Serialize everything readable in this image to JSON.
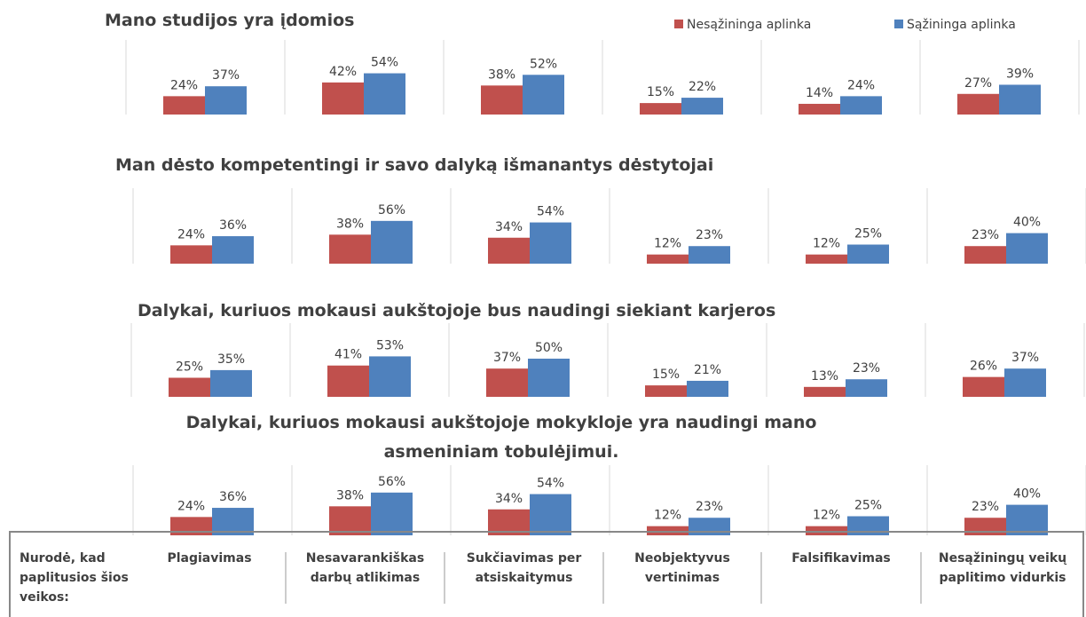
{
  "chart_data": [
    {
      "type": "bar",
      "title": "Mano studijos yra įdomios",
      "legend": "top-right",
      "series": [
        {
          "name": "Nesąžininga aplinka",
          "color": "#c0504d",
          "values": [
            24,
            42,
            38,
            15,
            14,
            27
          ],
          "value_labels": [
            "24%",
            "42%",
            "38%",
            "15%",
            "14%",
            "27%"
          ]
        },
        {
          "name": "Sąžininga aplinka",
          "color": "#4f81bd",
          "values": [
            37,
            54,
            52,
            22,
            24,
            39
          ],
          "value_labels": [
            "37%",
            "54%",
            "52%",
            "22%",
            "24%",
            "39%"
          ]
        }
      ]
    },
    {
      "type": "bar",
      "title": "Man dėsto kompetentingi ir savo dalyką išmanantys dėstytojai",
      "series": [
        {
          "name": "Nesąžininga aplinka",
          "color": "#c0504d",
          "values": [
            24,
            38,
            34,
            12,
            12,
            23
          ],
          "value_labels": [
            "24%",
            "38%",
            "34%",
            "12%",
            "12%",
            "23%"
          ]
        },
        {
          "name": "Sąžininga aplinka",
          "color": "#4f81bd",
          "values": [
            36,
            56,
            54,
            23,
            25,
            40
          ],
          "value_labels": [
            "36%",
            "56%",
            "54%",
            "23%",
            "25%",
            "40%"
          ]
        }
      ]
    },
    {
      "type": "bar",
      "title": "Dalykai, kuriuos mokausi aukštojoje bus naudingi siekiant karjeros",
      "series": [
        {
          "name": "Nesąžininga aplinka",
          "color": "#c0504d",
          "values": [
            25,
            41,
            37,
            15,
            13,
            26
          ],
          "value_labels": [
            "25%",
            "41%",
            "37%",
            "15%",
            "13%",
            "26%"
          ]
        },
        {
          "name": "Sąžininga aplinka",
          "color": "#4f81bd",
          "values": [
            35,
            53,
            50,
            21,
            23,
            37
          ],
          "value_labels": [
            "35%",
            "53%",
            "50%",
            "21%",
            "23%",
            "37%"
          ]
        }
      ]
    },
    {
      "type": "bar",
      "title": "Dalykai, kuriuos mokausi aukštojoje mokykloje yra naudingi mano asmeniniam tobulėjimui.",
      "series": [
        {
          "name": "Nesąžininga aplinka",
          "color": "#c0504d",
          "values": [
            24,
            38,
            34,
            12,
            12,
            23
          ],
          "value_labels": [
            "24%",
            "38%",
            "34%",
            "12%",
            "12%",
            "23%"
          ]
        },
        {
          "name": "Sąžininga aplinka",
          "color": "#4f81bd",
          "values": [
            36,
            56,
            54,
            23,
            25,
            40
          ],
          "value_labels": [
            "36%",
            "56%",
            "54%",
            "23%",
            "25%",
            "40%"
          ]
        }
      ]
    }
  ],
  "row_header": "Nurodė, kad paplitusios šios veikos:",
  "categories": [
    "Plagiavimas",
    "Nesavarankiškas darbų atlikimas",
    "Sukčiavimas per atsiskaitymus",
    "Neobjektyvus vertinimas",
    "Falsifikavimas",
    "Nesąžiningų veikų paplitimo vidurkis"
  ]
}
